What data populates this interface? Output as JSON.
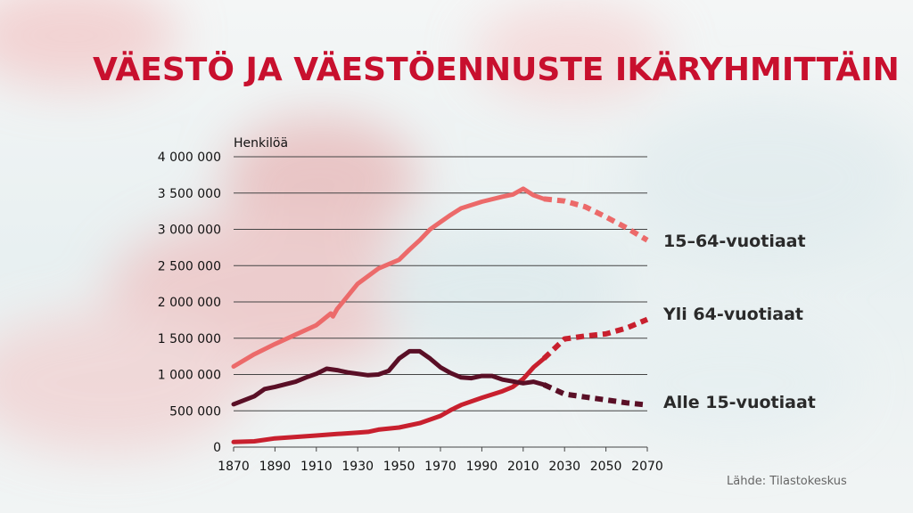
{
  "title": "VÄESTÖ JA VÄESTÖENNUSTE IKÄRYHMITTÄIN",
  "source": "Lähde: Tilastokeskus",
  "colors": {
    "title": "#c8102e",
    "series_15_64": "#ec6a6a",
    "series_over_64": "#c8202e",
    "series_under_15": "#5a0f26",
    "gridline": "#444444"
  },
  "chart_data": {
    "type": "line",
    "title": "VÄESTÖ JA VÄESTÖENNUSTE IKÄRYHMITTÄIN",
    "ylabel": "Henkilöä",
    "xlabel": "",
    "xlim": [
      1870,
      2070
    ],
    "ylim": [
      0,
      4000000
    ],
    "grid": true,
    "legend": "inline-right",
    "x_ticks": [
      1870,
      1890,
      1910,
      1930,
      1950,
      1970,
      1990,
      2010,
      2030,
      2050,
      2070
    ],
    "y_ticks": [
      0,
      500000,
      1000000,
      1500000,
      2000000,
      2500000,
      3000000,
      3500000,
      4000000
    ],
    "y_tick_labels": [
      "0",
      "500 000",
      "1 000 000",
      "1 500 000",
      "2 000 000",
      "2 500 000",
      "3 000 000",
      "3 500 000",
      "4 000 000"
    ],
    "series": [
      {
        "name": "15–64-vuotiaat",
        "color": "#ec6a6a",
        "actual": [
          [
            1870,
            1110000
          ],
          [
            1880,
            1280000
          ],
          [
            1890,
            1420000
          ],
          [
            1900,
            1550000
          ],
          [
            1910,
            1680000
          ],
          [
            1917,
            1840000
          ],
          [
            1918,
            1800000
          ],
          [
            1920,
            1900000
          ],
          [
            1930,
            2250000
          ],
          [
            1940,
            2460000
          ],
          [
            1945,
            2520000
          ],
          [
            1950,
            2580000
          ],
          [
            1955,
            2720000
          ],
          [
            1960,
            2850000
          ],
          [
            1965,
            3000000
          ],
          [
            1970,
            3100000
          ],
          [
            1975,
            3200000
          ],
          [
            1980,
            3290000
          ],
          [
            1990,
            3380000
          ],
          [
            2000,
            3450000
          ],
          [
            2005,
            3480000
          ],
          [
            2010,
            3560000
          ],
          [
            2015,
            3470000
          ],
          [
            2020,
            3420000
          ]
        ],
        "forecast": [
          [
            2020,
            3420000
          ],
          [
            2030,
            3390000
          ],
          [
            2040,
            3310000
          ],
          [
            2050,
            3170000
          ],
          [
            2060,
            3020000
          ],
          [
            2070,
            2850000
          ]
        ]
      },
      {
        "name": "Yli 64-vuotiaat",
        "color": "#c8202e",
        "actual": [
          [
            1870,
            70000
          ],
          [
            1880,
            80000
          ],
          [
            1890,
            120000
          ],
          [
            1900,
            140000
          ],
          [
            1910,
            160000
          ],
          [
            1920,
            180000
          ],
          [
            1930,
            200000
          ],
          [
            1935,
            210000
          ],
          [
            1940,
            240000
          ],
          [
            1950,
            270000
          ],
          [
            1960,
            330000
          ],
          [
            1970,
            430000
          ],
          [
            1975,
            510000
          ],
          [
            1980,
            580000
          ],
          [
            1990,
            680000
          ],
          [
            2000,
            770000
          ],
          [
            2005,
            830000
          ],
          [
            2010,
            940000
          ],
          [
            2015,
            1100000
          ],
          [
            2020,
            1220000
          ]
        ],
        "forecast": [
          [
            2020,
            1220000
          ],
          [
            2030,
            1490000
          ],
          [
            2040,
            1530000
          ],
          [
            2050,
            1560000
          ],
          [
            2060,
            1640000
          ],
          [
            2070,
            1760000
          ]
        ]
      },
      {
        "name": "Alle 15-vuotiaat",
        "color": "#5a0f26",
        "actual": [
          [
            1870,
            590000
          ],
          [
            1880,
            700000
          ],
          [
            1885,
            800000
          ],
          [
            1890,
            830000
          ],
          [
            1900,
            900000
          ],
          [
            1905,
            960000
          ],
          [
            1910,
            1010000
          ],
          [
            1915,
            1080000
          ],
          [
            1920,
            1060000
          ],
          [
            1925,
            1030000
          ],
          [
            1930,
            1010000
          ],
          [
            1935,
            990000
          ],
          [
            1940,
            1000000
          ],
          [
            1945,
            1050000
          ],
          [
            1950,
            1220000
          ],
          [
            1955,
            1320000
          ],
          [
            1960,
            1320000
          ],
          [
            1965,
            1220000
          ],
          [
            1970,
            1100000
          ],
          [
            1975,
            1020000
          ],
          [
            1980,
            960000
          ],
          [
            1985,
            950000
          ],
          [
            1990,
            980000
          ],
          [
            1995,
            980000
          ],
          [
            2000,
            930000
          ],
          [
            2010,
            880000
          ],
          [
            2015,
            900000
          ],
          [
            2020,
            860000
          ]
        ],
        "forecast": [
          [
            2020,
            860000
          ],
          [
            2030,
            730000
          ],
          [
            2040,
            690000
          ],
          [
            2050,
            650000
          ],
          [
            2060,
            610000
          ],
          [
            2070,
            580000
          ]
        ]
      }
    ]
  },
  "labels": {
    "series_15_64": "15–64-vuotiaat",
    "series_over_64": "Yli 64-vuotiaat",
    "series_under_15": "Alle 15-vuotiaat"
  }
}
